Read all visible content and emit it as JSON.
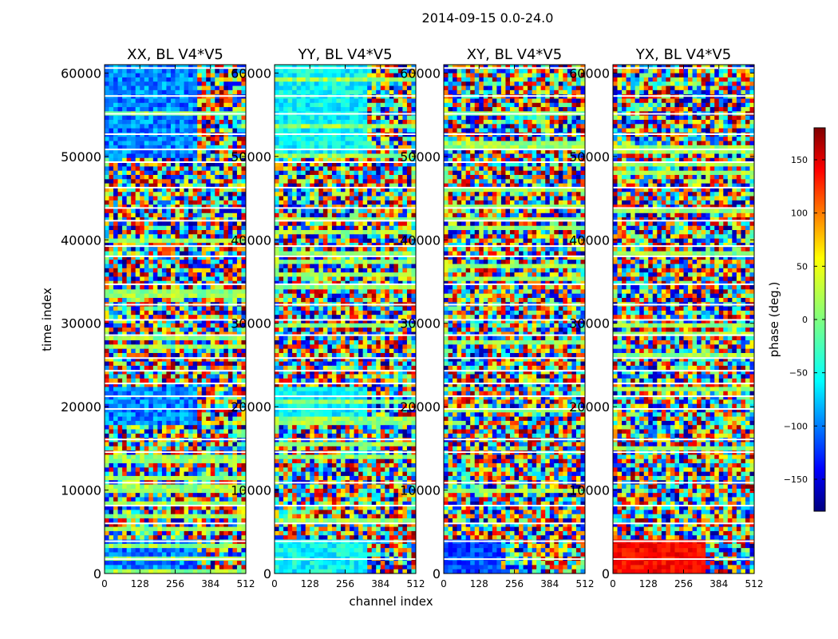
{
  "chart_data": {
    "type": "heatmap",
    "title": "2014-09-15 0.0-24.0",
    "xlabel": "channel index",
    "ylabel": "time index",
    "xlim": [
      0,
      512
    ],
    "ylim": [
      0,
      61000
    ],
    "x_ticks": [
      0,
      128,
      256,
      384,
      512
    ],
    "y_ticks": [
      0,
      10000,
      20000,
      30000,
      40000,
      50000,
      60000
    ],
    "panels": [
      {
        "title": "XX, BL V4*V5",
        "base_hue": "blue"
      },
      {
        "title": "YY, BL V4*V5",
        "base_hue": "cyan"
      },
      {
        "title": "XY, BL V4*V5",
        "base_hue": "noise"
      },
      {
        "title": "YX, BL V4*V5",
        "base_hue": "noise-red"
      }
    ],
    "colorbar": {
      "label": "phase (deg.)",
      "range": [
        -180,
        180
      ],
      "ticks": [
        -150,
        -100,
        -50,
        0,
        50,
        100,
        150
      ],
      "tick_labels": [
        "−150",
        "−100",
        "−50",
        "0",
        "50",
        "100",
        "150"
      ],
      "colormap": "jet"
    }
  }
}
